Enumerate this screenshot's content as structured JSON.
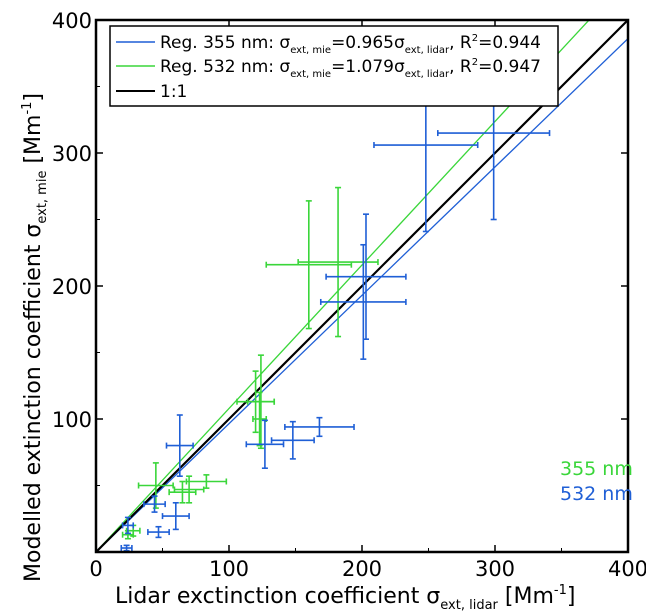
{
  "chart_data": {
    "type": "scatter",
    "xlabel": {
      "main": "Lidar exctinction coefficient σ",
      "sub": "ext, lidar",
      "unit_pre": " [Mm",
      "unit_sup": "-1",
      "unit_post": "]"
    },
    "ylabel": {
      "main": "Modelled extinction coefficient σ",
      "sub": "ext, mie",
      "unit_pre": " [Mm",
      "unit_sup": "-1",
      "unit_post": "]"
    },
    "xlim": [
      0,
      400
    ],
    "ylim": [
      0,
      400
    ],
    "x_ticks": [
      "0",
      "100",
      "200",
      "300",
      "400"
    ],
    "y_ticks": [
      "100",
      "200",
      "300",
      "400"
    ],
    "grid": false,
    "legend_position": "top",
    "legend": [
      {
        "color": "#1f5fd6",
        "parts": [
          "Reg. 355 nm: σ",
          "ext, mie",
          "=0.965σ",
          "ext, lidar",
          ", R",
          "2",
          "=0.944"
        ]
      },
      {
        "color": "#3ad63a",
        "parts": [
          "Reg. 532 nm: σ",
          "ext, mie",
          "=1.079σ",
          "ext, lidar",
          ", R",
          "2",
          "=0.947"
        ]
      },
      {
        "color": "#000000",
        "parts": [
          "1:1"
        ]
      }
    ],
    "annotations": [
      {
        "text": "355 nm",
        "color": "#3ad63a"
      },
      {
        "text": "532 nm",
        "color": "#1f5fd6"
      }
    ],
    "lines": [
      {
        "name": "Reg. 355 nm",
        "slope": 0.965,
        "color": "#1f5fd6"
      },
      {
        "name": "Reg. 532 nm",
        "slope": 1.079,
        "color": "#3ad63a"
      },
      {
        "name": "1:1",
        "slope": 1.0,
        "color": "#000000"
      }
    ],
    "series": [
      {
        "color": "#3ad63a",
        "points": [
          {
            "x": 24,
            "y": 13,
            "xerr": 4,
            "yerr": 3
          },
          {
            "x": 28,
            "y": 16,
            "xerr": 5,
            "yerr": 4
          },
          {
            "x": 45,
            "y": 50,
            "xerr": 13,
            "yerr": 17
          },
          {
            "x": 65,
            "y": 45,
            "xerr": 10,
            "yerr": 8
          },
          {
            "x": 70,
            "y": 47,
            "xerr": 11,
            "yerr": 10
          },
          {
            "x": 83,
            "y": 53,
            "xerr": 15,
            "yerr": 5
          },
          {
            "x": 120,
            "y": 113,
            "xerr": 14,
            "yerr": 23
          },
          {
            "x": 124,
            "y": 113,
            "xerr": 10,
            "yerr": 35
          },
          {
            "x": 123,
            "y": 100,
            "xerr": 5,
            "yerr": 20
          },
          {
            "x": 160,
            "y": 216,
            "xerr": 32,
            "yerr": 48
          },
          {
            "x": 182,
            "y": 218,
            "xerr": 30,
            "yerr": 56
          }
        ]
      },
      {
        "color": "#1f5fd6",
        "points": [
          {
            "x": 23,
            "y": 3,
            "xerr": 4,
            "yerr": 2
          },
          {
            "x": 24,
            "y": 20,
            "xerr": 4,
            "yerr": 6
          },
          {
            "x": 44,
            "y": 36,
            "xerr": 8,
            "yerr": 6
          },
          {
            "x": 47,
            "y": 15,
            "xerr": 8,
            "yerr": 4
          },
          {
            "x": 60,
            "y": 27,
            "xerr": 10,
            "yerr": 10
          },
          {
            "x": 63,
            "y": 80,
            "xerr": 10,
            "yerr": 23
          },
          {
            "x": 127,
            "y": 81,
            "xerr": 14,
            "yerr": 18
          },
          {
            "x": 148,
            "y": 84,
            "xerr": 16,
            "yerr": 14
          },
          {
            "x": 168,
            "y": 94,
            "xerr": 26,
            "yerr": 7
          },
          {
            "x": 201,
            "y": 188,
            "xerr": 32,
            "yerr": 43
          },
          {
            "x": 203,
            "y": 207,
            "xerr": 30,
            "yerr": 47
          },
          {
            "x": 248,
            "y": 306,
            "xerr": 39,
            "yerr": 65
          },
          {
            "x": 299,
            "y": 315,
            "xerr": 42,
            "yerr": 65
          }
        ]
      }
    ]
  }
}
